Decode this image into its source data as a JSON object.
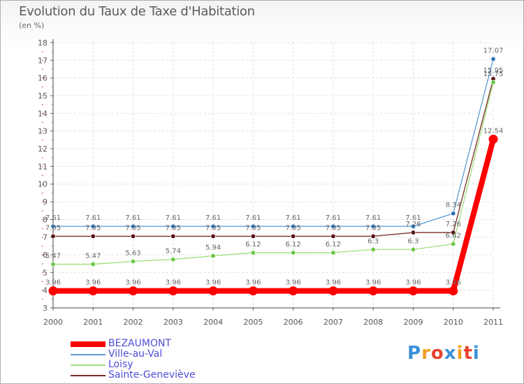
{
  "chart_data": {
    "type": "line",
    "title": "Evolution du Taux de Taxe d'Habitation",
    "subtitle": "(en %)",
    "xlabel": "",
    "ylabel": "",
    "categories": [
      "2000",
      "2001",
      "2002",
      "2003",
      "2004",
      "2005",
      "2006",
      "2007",
      "2008",
      "2009",
      "2010",
      "2011"
    ],
    "ylim": [
      3,
      18
    ],
    "yticks": [
      3,
      4,
      5,
      6,
      7,
      8,
      9,
      10,
      11,
      12,
      13,
      14,
      15,
      16,
      17,
      18
    ],
    "grid": true,
    "legend_position": "bottom-left",
    "series": [
      {
        "name": "Ville-au-Val",
        "color": "#5b9bd5",
        "marker": "#2e75b6",
        "values": [
          7.61,
          7.61,
          7.61,
          7.61,
          7.61,
          7.61,
          7.61,
          7.61,
          7.61,
          7.61,
          8.34,
          17.07
        ],
        "labels": [
          "7.61",
          "7.61",
          "7.61",
          "7.61",
          "7.61",
          "7.61",
          "7.61",
          "7.61",
          "7.61",
          "7.61",
          "8.34",
          "17.07"
        ]
      },
      {
        "name": "Sainte-Geneviève",
        "color": "#7a2a2a",
        "marker": "#5a1414",
        "values": [
          7.05,
          7.05,
          7.05,
          7.05,
          7.05,
          7.05,
          7.05,
          7.05,
          7.05,
          7.26,
          7.26,
          15.95
        ],
        "labels": [
          "7.05",
          "7.05",
          "7.05",
          "7.05",
          "7.05",
          "7.05",
          "7.05",
          "7.05",
          "7.05",
          "7.26",
          "7.26",
          "15.95"
        ]
      },
      {
        "name": "Loisy",
        "color": "#9be07a",
        "marker": "#6cc846",
        "values": [
          5.47,
          5.47,
          5.63,
          5.74,
          5.94,
          6.12,
          6.12,
          6.12,
          6.3,
          6.3,
          6.62,
          15.75
        ],
        "labels": [
          "5.47",
          "5.47",
          "5.63",
          "5.74",
          "5.94",
          "6.12",
          "6.12",
          "6.12",
          "6.3",
          "6.3",
          "6.62",
          "15.75"
        ]
      },
      {
        "name": "BEZAUMONT",
        "color": "#ff0000",
        "marker": "#ff0000",
        "values": [
          3.96,
          3.96,
          3.96,
          3.96,
          3.96,
          3.96,
          3.96,
          3.96,
          3.96,
          3.96,
          3.96,
          12.54
        ],
        "labels": [
          "3.96",
          "3.96",
          "3.96",
          "3.96",
          "3.96",
          "3.96",
          "3.96",
          "3.96",
          "3.96",
          "3.96",
          "3.96",
          "12.54"
        ]
      }
    ]
  },
  "legend": [
    {
      "label": "BEZAUMONT",
      "color": "#ff0000"
    },
    {
      "label": "Ville-au-Val",
      "color": "#5b9bd5"
    },
    {
      "label": "Loisy",
      "color": "#9be07a"
    },
    {
      "label": "Sainte-Geneviève",
      "color": "#7a2a2a"
    }
  ],
  "logo": {
    "letters": [
      "P",
      "r",
      "o",
      "x",
      "i",
      "t",
      "i"
    ],
    "colors": [
      "#3a8fd8",
      "#f0a020",
      "#e84030",
      "#3a8fd8",
      "#f0a020",
      "#e84030",
      "#3a8fd8"
    ]
  }
}
